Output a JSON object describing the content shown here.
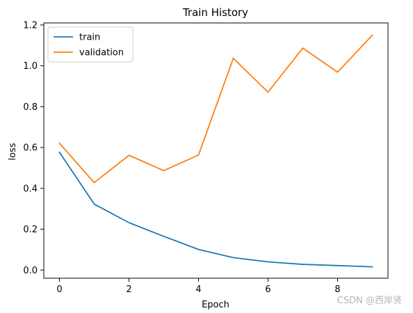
{
  "chart_data": {
    "type": "line",
    "title": "Train History",
    "xlabel": "Epoch",
    "ylabel": "loss",
    "x": [
      0,
      1,
      2,
      3,
      4,
      5,
      6,
      7,
      8,
      9
    ],
    "xlim": [
      -0.45,
      9.45
    ],
    "ylim": [
      -0.04,
      1.21
    ],
    "xticks": [
      0,
      2,
      4,
      6,
      8
    ],
    "yticks": [
      0.0,
      0.2,
      0.4,
      0.6,
      0.8,
      1.0,
      1.2
    ],
    "xtick_labels": [
      "0",
      "2",
      "4",
      "6",
      "8"
    ],
    "ytick_labels": [
      "0.0",
      "0.2",
      "0.4",
      "0.6",
      "0.8",
      "1.0",
      "1.2"
    ],
    "grid": false,
    "legend_position": "top-left",
    "series": [
      {
        "name": "train",
        "color": "#1f77b4",
        "values": [
          0.577,
          0.323,
          0.232,
          0.165,
          0.101,
          0.061,
          0.04,
          0.028,
          0.022,
          0.016
        ]
      },
      {
        "name": "validation",
        "color": "#ff7f0e",
        "values": [
          0.621,
          0.428,
          0.562,
          0.487,
          0.563,
          1.037,
          0.871,
          1.087,
          0.969,
          1.15
        ]
      }
    ]
  },
  "watermark": "CSDN @西岸贤"
}
